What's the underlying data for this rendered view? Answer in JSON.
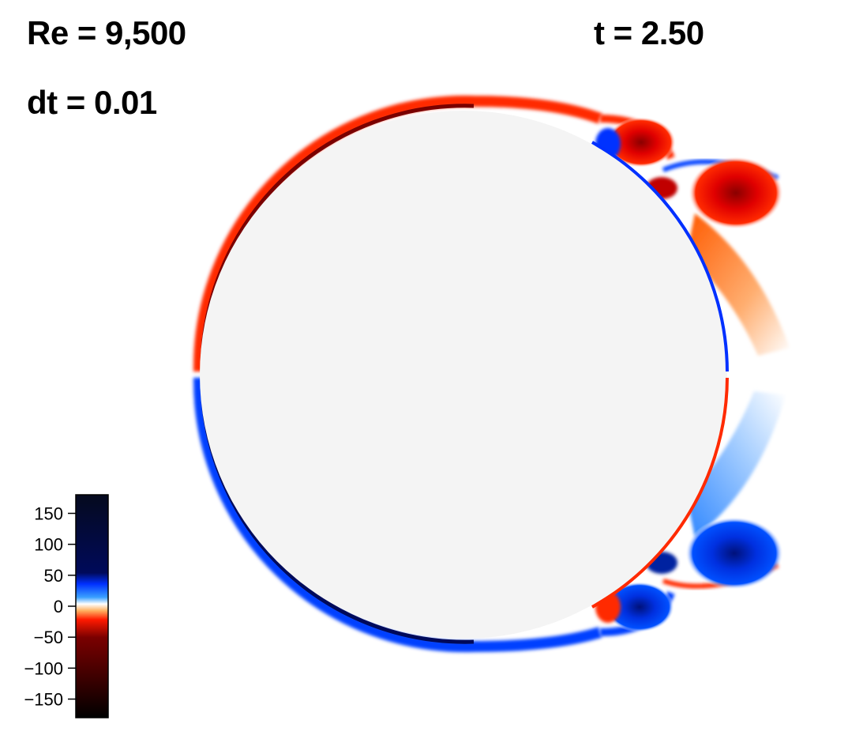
{
  "header": {
    "reynolds": "Re = 9,500",
    "timestep": "dt = 0.01",
    "time": "t = 2.50"
  },
  "colorbar": {
    "range": [
      -180,
      180
    ],
    "ticks": [
      {
        "value": 150,
        "label": "150"
      },
      {
        "value": 100,
        "label": "100"
      },
      {
        "value": 50,
        "label": "50"
      },
      {
        "value": 0,
        "label": "0"
      },
      {
        "value": -50,
        "label": "−50"
      },
      {
        "value": -100,
        "label": "−100"
      },
      {
        "value": -150,
        "label": "−150"
      }
    ],
    "colors": {
      "max": "#050a1e",
      "positive_high": "#000a5a",
      "positive_mid": "#0030ff",
      "zero": "#ffffff",
      "negative_mid": "#ff1a00",
      "negative_high": "#5a0000",
      "min": "#000000"
    }
  },
  "body": {
    "fill": "#f4f4f4"
  }
}
